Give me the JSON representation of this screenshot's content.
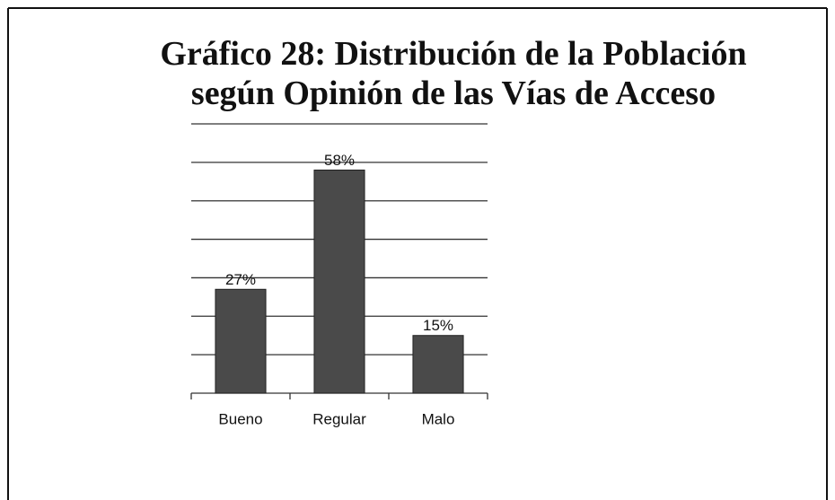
{
  "chart_data": {
    "type": "bar",
    "title": "Gráfico 28: Distribución de la Población según Opinión de las Vías de Acceso",
    "categories": [
      "Bueno",
      "Regular",
      "Malo"
    ],
    "values": [
      27,
      58,
      15
    ],
    "value_labels": [
      "27%",
      "58%",
      "15%"
    ],
    "color": "#4a4a4a",
    "ylim": [
      0,
      70
    ],
    "yticks": [
      0,
      10,
      20,
      30,
      40,
      50,
      60,
      70
    ],
    "grid": true
  }
}
